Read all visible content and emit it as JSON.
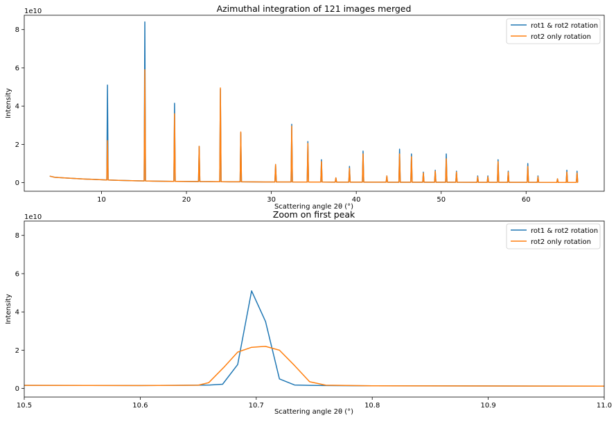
{
  "colors": {
    "series1": "#1f77b4",
    "series2": "#ff7f0e",
    "axes": "#000000"
  },
  "chart_data": [
    {
      "type": "line",
      "title": "Azimuthal integration of 121 images merged",
      "xlabel": "Scattering angle 2θ (°)",
      "ylabel": "Intensity",
      "y_offset_text": "1e10",
      "xlim": [
        0.9,
        69.2
      ],
      "ylim": [
        -0.45,
        8.75
      ],
      "y_unit_multiplier": 10000000000.0,
      "xticks": [
        10,
        20,
        30,
        40,
        50,
        60
      ],
      "xtick_labels": [
        "10",
        "20",
        "30",
        "40",
        "50",
        "60"
      ],
      "yticks": [
        0,
        2,
        4,
        6,
        8
      ],
      "ytick_labels": [
        "0",
        "2",
        "4",
        "6",
        "8"
      ],
      "legend": {
        "position": "top-right",
        "entries": [
          "rot1 & rot2 rotation",
          "rot2 only rotation"
        ]
      },
      "baseline": {
        "x": [
          3.9,
          4.5,
          6,
          8,
          10,
          12,
          14,
          16,
          20,
          25,
          30,
          40,
          50,
          60,
          66.1
        ],
        "y": [
          0.34,
          0.28,
          0.24,
          0.19,
          0.15,
          0.12,
          0.1,
          0.08,
          0.06,
          0.045,
          0.035,
          0.025,
          0.02,
          0.015,
          0.012
        ]
      },
      "series": [
        {
          "name": "rot1 & rot2 rotation",
          "peaks": [
            {
              "x": 10.7,
              "y": 5.1
            },
            {
              "x": 15.1,
              "y": 8.4
            },
            {
              "x": 18.6,
              "y": 4.15
            },
            {
              "x": 21.5,
              "y": 1.9
            },
            {
              "x": 24.0,
              "y": 4.9
            },
            {
              "x": 26.4,
              "y": 2.6
            },
            {
              "x": 30.5,
              "y": 0.95
            },
            {
              "x": 32.4,
              "y": 3.05
            },
            {
              "x": 34.3,
              "y": 2.15
            },
            {
              "x": 35.9,
              "y": 1.2
            },
            {
              "x": 37.6,
              "y": 0.25
            },
            {
              "x": 39.2,
              "y": 0.85
            },
            {
              "x": 40.8,
              "y": 1.65
            },
            {
              "x": 43.6,
              "y": 0.35
            },
            {
              "x": 45.1,
              "y": 1.75
            },
            {
              "x": 46.5,
              "y": 1.5
            },
            {
              "x": 47.9,
              "y": 0.55
            },
            {
              "x": 49.3,
              "y": 0.65
            },
            {
              "x": 50.6,
              "y": 1.5
            },
            {
              "x": 51.8,
              "y": 0.6
            },
            {
              "x": 54.3,
              "y": 0.35
            },
            {
              "x": 55.5,
              "y": 0.35
            },
            {
              "x": 56.7,
              "y": 1.2
            },
            {
              "x": 57.9,
              "y": 0.6
            },
            {
              "x": 60.2,
              "y": 1.0
            },
            {
              "x": 61.4,
              "y": 0.35
            },
            {
              "x": 63.7,
              "y": 0.2
            },
            {
              "x": 64.8,
              "y": 0.65
            },
            {
              "x": 66.0,
              "y": 0.6
            }
          ]
        },
        {
          "name": "rot2 only rotation",
          "peaks": [
            {
              "x": 10.7,
              "y": 2.2
            },
            {
              "x": 15.1,
              "y": 5.9
            },
            {
              "x": 18.6,
              "y": 3.6
            },
            {
              "x": 21.5,
              "y": 1.9
            },
            {
              "x": 24.0,
              "y": 4.95
            },
            {
              "x": 26.4,
              "y": 2.65
            },
            {
              "x": 30.5,
              "y": 0.95
            },
            {
              "x": 32.4,
              "y": 2.95
            },
            {
              "x": 34.3,
              "y": 2.05
            },
            {
              "x": 35.9,
              "y": 1.1
            },
            {
              "x": 37.6,
              "y": 0.25
            },
            {
              "x": 39.2,
              "y": 0.75
            },
            {
              "x": 40.8,
              "y": 1.5
            },
            {
              "x": 43.6,
              "y": 0.35
            },
            {
              "x": 45.1,
              "y": 1.5
            },
            {
              "x": 46.5,
              "y": 1.35
            },
            {
              "x": 47.9,
              "y": 0.5
            },
            {
              "x": 49.3,
              "y": 0.6
            },
            {
              "x": 50.6,
              "y": 1.25
            },
            {
              "x": 51.8,
              "y": 0.55
            },
            {
              "x": 54.3,
              "y": 0.3
            },
            {
              "x": 55.5,
              "y": 0.3
            },
            {
              "x": 56.7,
              "y": 1.1
            },
            {
              "x": 57.9,
              "y": 0.55
            },
            {
              "x": 60.2,
              "y": 0.85
            },
            {
              "x": 61.4,
              "y": 0.3
            },
            {
              "x": 63.7,
              "y": 0.2
            },
            {
              "x": 64.8,
              "y": 0.55
            },
            {
              "x": 66.0,
              "y": 0.5
            }
          ]
        }
      ]
    },
    {
      "type": "line",
      "title": "Zoom on first peak",
      "xlabel": "Scattering angle 2θ (°)",
      "ylabel": "Intensity",
      "y_offset_text": "1e10",
      "xlim": [
        10.5,
        11.0
      ],
      "ylim": [
        -0.45,
        8.75
      ],
      "y_unit_multiplier": 10000000000.0,
      "xticks": [
        10.5,
        10.6,
        10.7,
        10.8,
        10.9,
        11.0
      ],
      "xtick_labels": [
        "10.5",
        "10.6",
        "10.7",
        "10.8",
        "10.9",
        "11.0"
      ],
      "yticks": [
        0,
        2,
        4,
        6,
        8
      ],
      "ytick_labels": [
        "0",
        "2",
        "4",
        "6",
        "8"
      ],
      "legend": {
        "position": "top-right",
        "entries": [
          "rot1 & rot2 rotation",
          "rot2 only rotation"
        ]
      },
      "series": [
        {
          "name": "rot1 & rot2 rotation",
          "x": [
            10.5,
            10.6,
            10.65,
            10.66,
            10.671,
            10.684,
            10.696,
            10.708,
            10.72,
            10.733,
            10.746,
            10.76,
            10.8,
            10.9,
            11.0
          ],
          "y": [
            0.16,
            0.15,
            0.17,
            0.18,
            0.22,
            1.25,
            5.1,
            3.5,
            0.5,
            0.18,
            0.16,
            0.15,
            0.14,
            0.13,
            0.12
          ]
        },
        {
          "name": "rot2 only rotation",
          "x": [
            10.5,
            10.6,
            10.65,
            10.659,
            10.672,
            10.684,
            10.696,
            10.708,
            10.72,
            10.733,
            10.746,
            10.76,
            10.8,
            10.9,
            11.0
          ],
          "y": [
            0.16,
            0.15,
            0.17,
            0.3,
            1.1,
            1.9,
            2.15,
            2.2,
            2.0,
            1.2,
            0.35,
            0.17,
            0.14,
            0.13,
            0.12
          ]
        }
      ]
    }
  ]
}
